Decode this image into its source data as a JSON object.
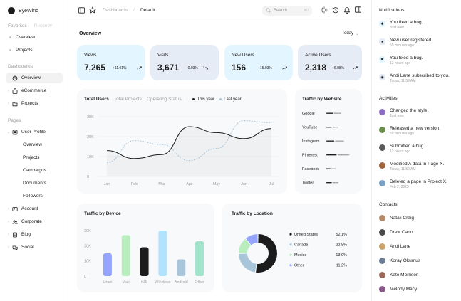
{
  "brand": {
    "name": "ByeWind"
  },
  "sidebar": {
    "tabs": [
      "Favorites",
      "Recently"
    ],
    "favorites": [
      "Overview",
      "Projects"
    ],
    "dashboards_title": "Dashboards",
    "dashboards": [
      "Overview",
      "eCommerce",
      "Projects"
    ],
    "pages_title": "Pages",
    "user_profile": "User Profile",
    "user_profile_children": [
      "Overview",
      "Projects",
      "Campaigns",
      "Documents",
      "Followers"
    ],
    "pages": [
      "Account",
      "Corporate",
      "Blog",
      "Social"
    ]
  },
  "topbar": {
    "breadcrumb_root": "Dashboards",
    "breadcrumb_sep": "/",
    "breadcrumb_current": "Default",
    "search_placeholder": "Search",
    "search_shortcut": "⌘/"
  },
  "overview": {
    "title": "Overview",
    "range": "Today"
  },
  "kpis": [
    {
      "title": "Views",
      "value": "7,265",
      "change": "+11.01%"
    },
    {
      "title": "Visits",
      "value": "3,671",
      "change": "-0.03%"
    },
    {
      "title": "New Users",
      "value": "156",
      "change": "+15.03%"
    },
    {
      "title": "Active Users",
      "value": "2,318",
      "change": "+6.08%"
    }
  ],
  "users_chart": {
    "tabs": [
      "Total Users",
      "Total Projects",
      "Operating Status"
    ],
    "legend": [
      "This year",
      "Last year"
    ]
  },
  "chart_data": [
    {
      "type": "line",
      "title": "Total Users",
      "x": [
        "Jan",
        "Feb",
        "Mar",
        "Apr",
        "May",
        "Jun",
        "Jul"
      ],
      "ylim": [
        0,
        30000
      ],
      "yticks": [
        "0",
        "10K",
        "20K",
        "30K"
      ],
      "series": [
        {
          "name": "This year",
          "values": [
            13000,
            9000,
            11000,
            25000,
            22000,
            19000,
            24000
          ]
        },
        {
          "name": "Last year",
          "values": [
            7000,
            18000,
            16000,
            8000,
            14000,
            28000,
            27000
          ]
        }
      ]
    },
    {
      "type": "bar",
      "title": "Traffic by Website",
      "categories": [
        "Google",
        "YouTube",
        "Instagram",
        "Pinterest",
        "Facebook",
        "Twitter"
      ],
      "values": [
        0.55,
        0.45,
        0.65,
        0.85,
        0.35,
        0.45
      ]
    },
    {
      "type": "bar",
      "title": "Traffic by Device",
      "categories": [
        "Linux",
        "Mac",
        "iOS",
        "Windows",
        "Android",
        "Other"
      ],
      "values": [
        15000,
        27000,
        19000,
        30000,
        11000,
        23000
      ],
      "ylim": [
        0,
        30000
      ],
      "yticks": [
        "0",
        "10K",
        "20K",
        "30K"
      ],
      "colors": [
        "#95a4fc",
        "#baedbd",
        "#1c1c1c",
        "#b1e3ff",
        "#a8c5da",
        "#a1e3cb"
      ]
    },
    {
      "type": "pie",
      "title": "Traffic by Location",
      "categories": [
        "United States",
        "Canada",
        "Mexico",
        "Other"
      ],
      "values": [
        52.1,
        22.8,
        13.9,
        11.2
      ],
      "labels": [
        "52.1%",
        "22.8%",
        "13.9%",
        "11.2%"
      ],
      "colors": [
        "#1c1c1c",
        "#a8c5da",
        "#baedbd",
        "#95a4fc"
      ]
    }
  ],
  "notifications": {
    "title": "Notifications",
    "items": [
      {
        "text": "You fixed a bug.",
        "time": "Just now"
      },
      {
        "text": "New user registered.",
        "time": "59 minutes ago"
      },
      {
        "text": "You fixed a bug.",
        "time": "12 hours ago"
      },
      {
        "text": "Andi Lane subscribed to you.",
        "time": "Today, 11:59 AM"
      }
    ]
  },
  "activities": {
    "title": "Activities",
    "items": [
      {
        "text": "Changed the style.",
        "time": "Just now"
      },
      {
        "text": "Released a new version.",
        "time": "59 minutes ago"
      },
      {
        "text": "Submitted a bug.",
        "time": "12 hours ago"
      },
      {
        "text": "Modified A data in Page X.",
        "time": "Today, 11:59 AM"
      },
      {
        "text": "Deleted a page in Project X.",
        "time": "Feb 2, 2025"
      }
    ]
  },
  "contacts": {
    "title": "Contacts",
    "items": [
      "Natali Craig",
      "Drew Cano",
      "Andi Lane",
      "Koray Okumus",
      "Kate Morrison",
      "Melody Macy"
    ]
  }
}
